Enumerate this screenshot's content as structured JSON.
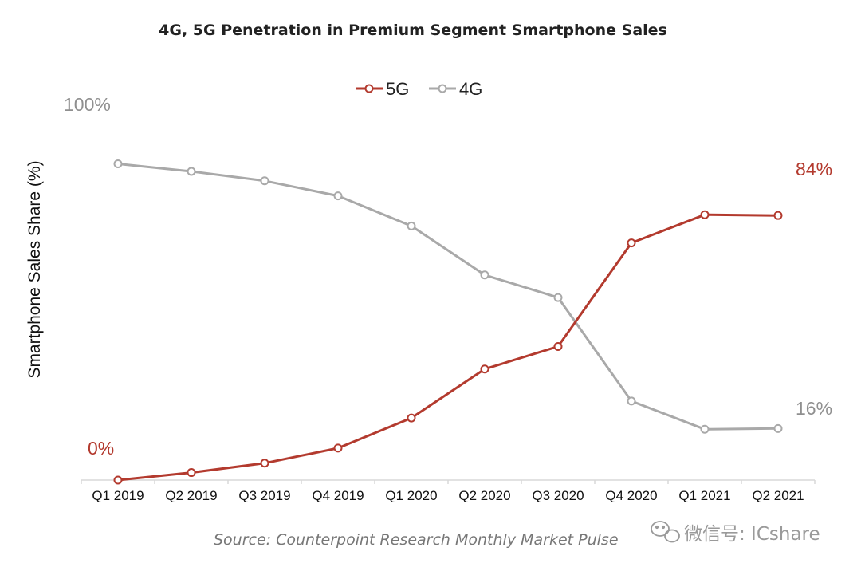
{
  "chart_data": {
    "type": "line",
    "title": "4G, 5G Penetration in Premium Segment Smartphone Sales",
    "ylabel": "Smartphone Sales Share (%)",
    "xlabel": "",
    "categories": [
      "Q1 2019",
      "Q2 2019",
      "Q3 2019",
      "Q4 2019",
      "Q1 2020",
      "Q2 2020",
      "Q3 2020",
      "Q4 2020",
      "Q1 2021",
      "Q2 2021"
    ],
    "ylim": [
      0,
      100
    ],
    "grid": false,
    "legend_position": "top-center",
    "series": [
      {
        "name": "5G",
        "color": "#b33a2e",
        "values": [
          0,
          2,
          4.5,
          8.5,
          16.5,
          29.5,
          35.5,
          63,
          70.5,
          70.3
        ]
      },
      {
        "name": "4G",
        "color": "#a9a9a9",
        "values": [
          84,
          82,
          79.5,
          75.5,
          67.5,
          54.5,
          48.5,
          21,
          13.5,
          13.7
        ]
      }
    ],
    "annotations": {
      "g4_start": "100%",
      "g5_start": "0%",
      "g5_end": "84%",
      "g4_end": "16%"
    }
  },
  "source": "Source: Counterpoint Research Monthly Market Pulse",
  "watermark": {
    "text": "微信号: ICshare",
    "icon": "wechat-icon"
  }
}
